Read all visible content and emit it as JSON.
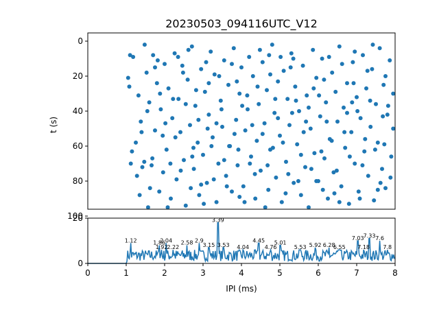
{
  "figure_title": "20230503_094116UTC_V12",
  "colors": {
    "series": "#1f77b4",
    "axes": "#000000",
    "background": "#ffffff"
  },
  "chart_data": [
    {
      "type": "scatter",
      "title": "20230503_094116UTC_V12",
      "xlabel": "",
      "ylabel": "t (s)",
      "xlim": [
        0,
        8
      ],
      "ylim": [
        100,
        0
      ],
      "y_inverted": true,
      "yticks": [
        0,
        20,
        40,
        60,
        80,
        100
      ],
      "grid": false,
      "marker": "filled circle",
      "note_points": "points scatter uniformly between IPI 1.0 and 8.0 ms over t 0 to 95 s",
      "points": [
        [
          1.05,
          21
        ],
        [
          1.08,
          26
        ],
        [
          1.1,
          8
        ],
        [
          1.12,
          70
        ],
        [
          1.18,
          9
        ],
        [
          1.25,
          58
        ],
        [
          1.32,
          31
        ],
        [
          1.38,
          46
        ],
        [
          1.42,
          72
        ],
        [
          1.47,
          69
        ],
        [
          1.53,
          18
        ],
        [
          1.57,
          95
        ],
        [
          1.6,
          35
        ],
        [
          1.66,
          71
        ],
        [
          1.7,
          8
        ],
        [
          1.75,
          51
        ],
        [
          1.8,
          24
        ],
        [
          1.86,
          86
        ],
        [
          1.9,
          39
        ],
        [
          1.96,
          75
        ],
        [
          2.0,
          13
        ],
        [
          2.05,
          62
        ],
        [
          2.1,
          27
        ],
        [
          2.16,
          90
        ],
        [
          2.2,
          44
        ],
        [
          2.26,
          7
        ],
        [
          2.31,
          79
        ],
        [
          2.36,
          33
        ],
        [
          2.41,
          52
        ],
        [
          2.46,
          14
        ],
        [
          2.5,
          68
        ],
        [
          2.55,
          94
        ],
        [
          2.6,
          22
        ],
        [
          2.66,
          48
        ],
        [
          2.71,
          3
        ],
        [
          2.76,
          73
        ],
        [
          2.8,
          37
        ],
        [
          2.86,
          58
        ],
        [
          2.9,
          88
        ],
        [
          2.95,
          16
        ],
        [
          3.0,
          65
        ],
        [
          3.05,
          29
        ],
        [
          3.1,
          81
        ],
        [
          3.15,
          42
        ],
        [
          3.2,
          6
        ],
        [
          3.25,
          55
        ],
        [
          3.3,
          19
        ],
        [
          3.35,
          92
        ],
        [
          3.4,
          70
        ],
        [
          3.46,
          34
        ],
        [
          3.5,
          49
        ],
        [
          3.55,
          11
        ],
        [
          3.6,
          77
        ],
        [
          3.66,
          25
        ],
        [
          3.7,
          60
        ],
        [
          3.75,
          86
        ],
        [
          3.8,
          4
        ],
        [
          3.86,
          45
        ],
        [
          3.9,
          71
        ],
        [
          3.95,
          30
        ],
        [
          4.0,
          15
        ],
        [
          4.05,
          83
        ],
        [
          4.1,
          51
        ],
        [
          4.16,
          39
        ],
        [
          4.2,
          9
        ],
        [
          4.25,
          66
        ],
        [
          4.3,
          20
        ],
        [
          4.36,
          90
        ],
        [
          4.4,
          57
        ],
        [
          4.45,
          36
        ],
        [
          4.5,
          74
        ],
        [
          4.55,
          12
        ],
        [
          4.6,
          47
        ],
        [
          4.66,
          28
        ],
        [
          4.7,
          85
        ],
        [
          4.75,
          62
        ],
        [
          4.8,
          2
        ],
        [
          4.86,
          41
        ],
        [
          4.9,
          78
        ],
        [
          4.95,
          23
        ],
        [
          5.0,
          54
        ],
        [
          5.05,
          92
        ],
        [
          5.1,
          17
        ],
        [
          5.16,
          69
        ],
        [
          5.2,
          33
        ],
        [
          5.25,
          48
        ],
        [
          5.3,
          7
        ],
        [
          5.36,
          81
        ],
        [
          5.4,
          26
        ],
        [
          5.45,
          59
        ],
        [
          5.5,
          40
        ],
        [
          5.55,
          88
        ],
        [
          5.6,
          14
        ],
        [
          5.66,
          72
        ],
        [
          5.7,
          31
        ],
        [
          5.75,
          95
        ],
        [
          5.8,
          50
        ],
        [
          5.86,
          5
        ],
        [
          5.9,
          64
        ],
        [
          5.95,
          21
        ],
        [
          6.0,
          80
        ],
        [
          6.05,
          43
        ],
        [
          6.1,
          10
        ],
        [
          6.16,
          67
        ],
        [
          6.2,
          35
        ],
        [
          6.25,
          90
        ],
        [
          6.3,
          56
        ],
        [
          6.36,
          18
        ],
        [
          6.4,
          75
        ],
        [
          6.45,
          29
        ],
        [
          6.5,
          46
        ],
        [
          6.55,
          3
        ],
        [
          6.6,
          83
        ],
        [
          6.66,
          38
        ],
        [
          6.7,
          61
        ],
        [
          6.75,
          24
        ],
        [
          6.8,
          93
        ],
        [
          6.86,
          52
        ],
        [
          6.9,
          12
        ],
        [
          6.95,
          70
        ],
        [
          7.0,
          32
        ],
        [
          7.05,
          86
        ],
        [
          7.1,
          44
        ],
        [
          7.16,
          8
        ],
        [
          7.2,
          63
        ],
        [
          7.25,
          27
        ],
        [
          7.3,
          77
        ],
        [
          7.36,
          49
        ],
        [
          7.4,
          16
        ],
        [
          7.45,
          91
        ],
        [
          7.5,
          36
        ],
        [
          7.55,
          58
        ],
        [
          7.6,
          4
        ],
        [
          7.66,
          73
        ],
        [
          7.7,
          25
        ],
        [
          7.75,
          84
        ],
        [
          7.8,
          42
        ],
        [
          7.86,
          11
        ],
        [
          7.9,
          66
        ],
        [
          7.95,
          30
        ],
        [
          1.15,
          63
        ],
        [
          1.35,
          88
        ],
        [
          1.55,
          40
        ],
        [
          1.75,
          15
        ],
        [
          1.95,
          54
        ],
        [
          2.15,
          70
        ],
        [
          2.35,
          9
        ],
        [
          2.55,
          36
        ],
        [
          2.75,
          61
        ],
        [
          2.95,
          82
        ],
        [
          3.15,
          24
        ],
        [
          3.35,
          47
        ],
        [
          3.55,
          68
        ],
        [
          3.75,
          13
        ],
        [
          3.95,
          89
        ],
        [
          4.15,
          31
        ],
        [
          4.35,
          76
        ],
        [
          4.55,
          53
        ],
        [
          4.75,
          19
        ],
        [
          4.95,
          44
        ],
        [
          5.15,
          87
        ],
        [
          5.35,
          10
        ],
        [
          5.55,
          65
        ],
        [
          5.75,
          38
        ],
        [
          5.95,
          80
        ],
        [
          6.15,
          22
        ],
        [
          6.35,
          57
        ],
        [
          6.55,
          92
        ],
        [
          6.75,
          41
        ],
        [
          6.95,
          6
        ],
        [
          7.15,
          71
        ],
        [
          7.35,
          34
        ],
        [
          7.55,
          85
        ],
        [
          7.75,
          20
        ],
        [
          7.95,
          50
        ],
        [
          1.28,
          77
        ],
        [
          1.48,
          2
        ],
        [
          1.68,
          67
        ],
        [
          1.88,
          30
        ],
        [
          2.08,
          95
        ],
        [
          2.28,
          55
        ],
        [
          2.48,
          18
        ],
        [
          2.68,
          84
        ],
        [
          2.88,
          45
        ],
        [
          3.08,
          12
        ],
        [
          3.28,
          79
        ],
        [
          3.48,
          39
        ],
        [
          3.68,
          60
        ],
        [
          3.88,
          23
        ],
        [
          4.08,
          92
        ],
        [
          4.28,
          48
        ],
        [
          4.48,
          5
        ],
        [
          4.68,
          71
        ],
        [
          4.88,
          33
        ],
        [
          5.08,
          58
        ],
        [
          5.28,
          15
        ],
        [
          5.48,
          80
        ],
        [
          5.68,
          46
        ],
        [
          5.88,
          27
        ],
        [
          6.08,
          63
        ],
        [
          6.28,
          9
        ],
        [
          6.48,
          74
        ],
        [
          6.68,
          52
        ],
        [
          6.88,
          35
        ],
        [
          7.08,
          90
        ],
        [
          7.28,
          17
        ],
        [
          7.48,
          62
        ],
        [
          7.68,
          43
        ],
        [
          7.88,
          78
        ],
        [
          1.4,
          52
        ],
        [
          1.62,
          84
        ],
        [
          1.82,
          11
        ],
        [
          2.02,
          47
        ],
        [
          2.22,
          33
        ],
        [
          2.42,
          74
        ],
        [
          2.62,
          5
        ],
        [
          2.82,
          28
        ],
        [
          3.02,
          93
        ],
        [
          3.22,
          60
        ],
        [
          3.42,
          20
        ],
        [
          3.62,
          83
        ],
        [
          3.82,
          53
        ],
        [
          4.02,
          37
        ],
        [
          4.22,
          70
        ],
        [
          4.42,
          26
        ],
        [
          4.62,
          95
        ],
        [
          4.82,
          61
        ],
        [
          5.02,
          9
        ],
        [
          5.22,
          76
        ],
        [
          5.42,
          34
        ],
        [
          5.62,
          52
        ],
        [
          5.82,
          73
        ],
        [
          6.02,
          31
        ],
        [
          6.22,
          46
        ],
        [
          6.42,
          87
        ],
        [
          6.62,
          13
        ],
        [
          6.82,
          66
        ],
        [
          7.02,
          40
        ],
        [
          7.22,
          56
        ],
        [
          7.42,
          2
        ],
        [
          7.62,
          81
        ],
        [
          7.82,
          37
        ],
        [
          2.72,
          66
        ],
        [
          3.12,
          50
        ],
        [
          3.92,
          62
        ],
        [
          4.72,
          8
        ],
        [
          5.32,
          41
        ],
        [
          6.12,
          85
        ],
        [
          6.92,
          24
        ],
        [
          7.72,
          59
        ]
      ]
    },
    {
      "type": "line",
      "title": "",
      "xlabel": "IPI (ms)",
      "ylabel": "",
      "xlim": [
        0,
        8
      ],
      "ylim": [
        0,
        20
      ],
      "xticks": [
        0,
        1,
        2,
        3,
        4,
        5,
        6,
        7,
        8
      ],
      "yticks": [
        0,
        20
      ],
      "grid": false,
      "note_curve": "histogram count curve: 0 up to IPI 1.0 ms, then fluctuating roughly 2 to 9 with a peak of about 18 near 3.4 ms",
      "peak_labels": [
        {
          "x": 1.12,
          "y": 9,
          "text": "1.12"
        },
        {
          "x": 1.86,
          "y": 8,
          "text": "1.86"
        },
        {
          "x": 1.92,
          "y": 6,
          "text": "1.92"
        },
        {
          "x": 2.04,
          "y": 9,
          "text": "2.04"
        },
        {
          "x": 2.22,
          "y": 6,
          "text": "2.22"
        },
        {
          "x": 2.58,
          "y": 8,
          "text": "2.58"
        },
        {
          "x": 2.9,
          "y": 9,
          "text": "2.9"
        },
        {
          "x": 3.15,
          "y": 7,
          "text": "3.15"
        },
        {
          "x": 3.39,
          "y": 18,
          "text": "3.39"
        },
        {
          "x": 3.53,
          "y": 7,
          "text": "3.53"
        },
        {
          "x": 4.04,
          "y": 6,
          "text": "4.04"
        },
        {
          "x": 4.45,
          "y": 9,
          "text": "4.45"
        },
        {
          "x": 4.76,
          "y": 6,
          "text": "4.76"
        },
        {
          "x": 5.01,
          "y": 8,
          "text": "5.01"
        },
        {
          "x": 5.53,
          "y": 6,
          "text": "5.53"
        },
        {
          "x": 5.92,
          "y": 7,
          "text": "5.92"
        },
        {
          "x": 6.28,
          "y": 7,
          "text": "6.28"
        },
        {
          "x": 6.55,
          "y": 6,
          "text": "6.55"
        },
        {
          "x": 7.03,
          "y": 10,
          "text": "7.03"
        },
        {
          "x": 7.18,
          "y": 6,
          "text": "7.18"
        },
        {
          "x": 7.33,
          "y": 11,
          "text": "7.33"
        },
        {
          "x": 7.6,
          "y": 10,
          "text": "7.6"
        },
        {
          "x": 7.8,
          "y": 6,
          "text": "7.8"
        }
      ]
    }
  ]
}
